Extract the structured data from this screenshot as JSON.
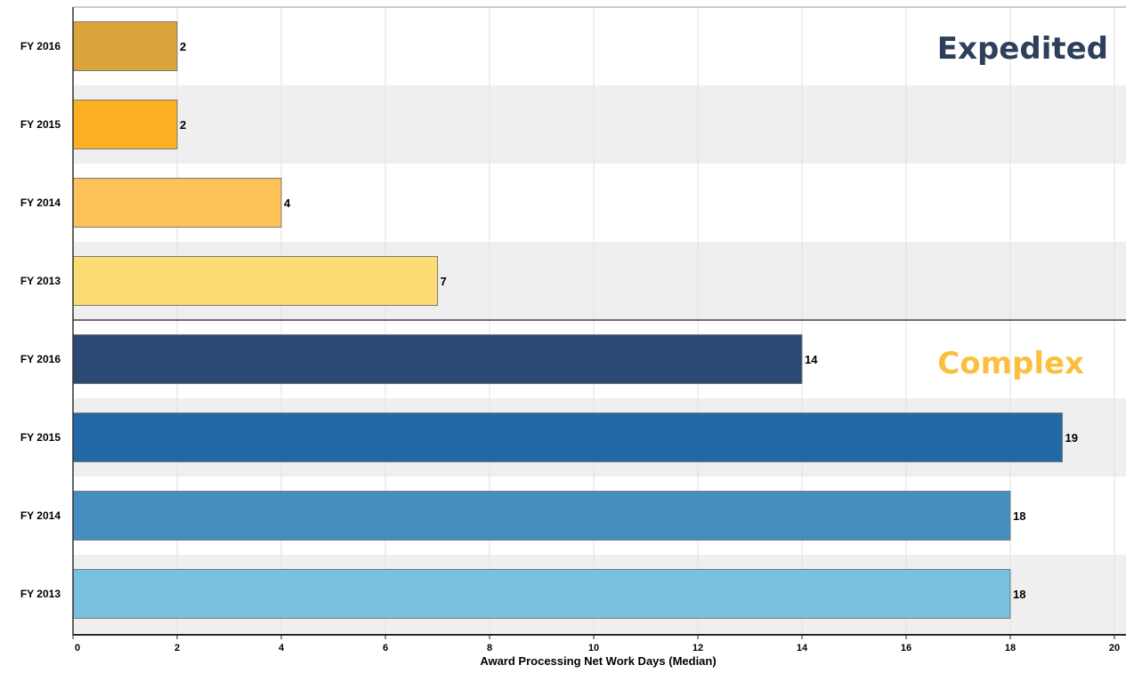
{
  "chart_data": {
    "type": "bar",
    "orientation": "horizontal",
    "xlabel": "Award Processing Net Work Days (Median)",
    "xlim": [
      0,
      20
    ],
    "xticks": [
      "0",
      "2",
      "4",
      "6",
      "8",
      "10",
      "12",
      "14",
      "16",
      "18",
      "20"
    ],
    "grid": true,
    "groups": [
      {
        "name": "Expedited",
        "title_color": "#2E3F5C",
        "bars": [
          {
            "category": "FY 2016",
            "value": 2,
            "label": "2",
            "color": "#DBA43C"
          },
          {
            "category": "FY 2015",
            "value": 2,
            "label": "2",
            "color": "#FDB022"
          },
          {
            "category": "FY 2014",
            "value": 4,
            "label": "4",
            "color": "#FEC259"
          },
          {
            "category": "FY 2013",
            "value": 7,
            "label": "7",
            "color": "#FEDC74"
          }
        ]
      },
      {
        "name": "Complex",
        "title_color": "#FBBF3E",
        "bars": [
          {
            "category": "FY 2016",
            "value": 14,
            "label": "14",
            "color": "#2A4A73"
          },
          {
            "category": "FY 2015",
            "value": 19,
            "label": "19",
            "color": "#2268A6"
          },
          {
            "category": "FY 2014",
            "value": 18,
            "label": "18",
            "color": "#448FC0"
          },
          {
            "category": "FY 2013",
            "value": 18,
            "label": "18",
            "color": "#78C0DE"
          }
        ]
      }
    ]
  }
}
